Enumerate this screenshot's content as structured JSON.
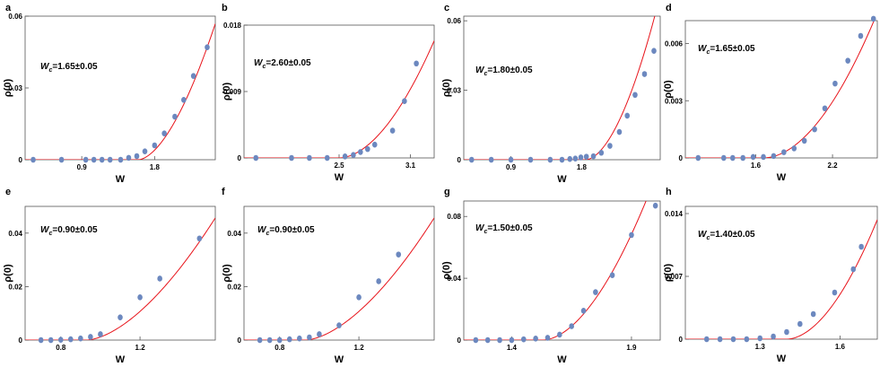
{
  "colors": {
    "points": "#6c88bf",
    "fit": "#e8141b",
    "frame": "#555555"
  },
  "chart_data": [
    {
      "type": "scatter",
      "panel": "a",
      "xlabel": "W",
      "ylabel": "ρ(0)",
      "annotation": "W_c=1.65±0.05",
      "ann_main": "W",
      "ann_sub": "c",
      "ann_rest": "=1.65±0.05",
      "xlim": [
        0.2,
        2.55
      ],
      "ylim": [
        0,
        0.06
      ],
      "xticks": [
        "0.9",
        "1.8"
      ],
      "yticks": [
        "0",
        "0.03",
        "0.06"
      ],
      "points": [
        [
          0.3,
          0
        ],
        [
          0.65,
          0
        ],
        [
          0.95,
          0
        ],
        [
          1.05,
          0
        ],
        [
          1.15,
          0
        ],
        [
          1.25,
          0
        ],
        [
          1.38,
          0
        ],
        [
          1.48,
          0.0008
        ],
        [
          1.58,
          0.0015
        ],
        [
          1.68,
          0.0035
        ],
        [
          1.8,
          0.006
        ],
        [
          1.92,
          0.011
        ],
        [
          2.05,
          0.018
        ],
        [
          2.16,
          0.025
        ],
        [
          2.28,
          0.035
        ],
        [
          2.45,
          0.047
        ]
      ],
      "fit": {
        "x0": 1.6,
        "a": 0.062,
        "p": 1.7
      }
    },
    {
      "type": "scatter",
      "panel": "b",
      "xlabel": "W",
      "ylabel": "ρ(0)",
      "annotation": "W_c=2.60±0.05",
      "ann_main": "W",
      "ann_sub": "c",
      "ann_rest": "=2.60±0.05",
      "xlim": [
        1.7,
        3.3
      ],
      "ylim": [
        0,
        0.018
      ],
      "xticks": [
        "2.5",
        "3.1"
      ],
      "yticks": [
        "0",
        "0.009",
        "0.018"
      ],
      "points": [
        [
          1.8,
          0
        ],
        [
          2.1,
          0
        ],
        [
          2.25,
          0
        ],
        [
          2.4,
          0
        ],
        [
          2.55,
          0.0002
        ],
        [
          2.62,
          0.0004
        ],
        [
          2.68,
          0.0008
        ],
        [
          2.74,
          0.0012
        ],
        [
          2.8,
          0.0018
        ],
        [
          2.95,
          0.0037
        ],
        [
          3.05,
          0.0077
        ],
        [
          3.15,
          0.0128
        ]
      ],
      "fit": {
        "x0": 2.5,
        "a": 0.024,
        "p": 1.85
      }
    },
    {
      "type": "scatter",
      "panel": "c",
      "xlabel": "W",
      "ylabel": "ρ(0)",
      "annotation": "W_c=1.80±0.05",
      "ann_main": "W",
      "ann_sub": "c",
      "ann_rest": "=1.80±0.05",
      "xlim": [
        0.3,
        2.8
      ],
      "ylim": [
        0,
        0.062
      ],
      "xticks": [
        "0.9",
        "1.8"
      ],
      "yticks": [
        "0",
        "0.03",
        "0.06"
      ],
      "points": [
        [
          0.4,
          0
        ],
        [
          0.65,
          0
        ],
        [
          0.9,
          0
        ],
        [
          1.15,
          0
        ],
        [
          1.4,
          0
        ],
        [
          1.55,
          0
        ],
        [
          1.65,
          0.0003
        ],
        [
          1.72,
          0.0005
        ],
        [
          1.79,
          0.001
        ],
        [
          1.86,
          0.0013
        ],
        [
          1.95,
          0.0015
        ],
        [
          2.05,
          0.003
        ],
        [
          2.16,
          0.006
        ],
        [
          2.28,
          0.012
        ],
        [
          2.38,
          0.019
        ],
        [
          2.48,
          0.028
        ],
        [
          2.6,
          0.037
        ],
        [
          2.72,
          0.047
        ]
      ],
      "fit": {
        "x0": 1.85,
        "a": 0.078,
        "p": 1.8
      }
    },
    {
      "type": "scatter",
      "panel": "d",
      "xlabel": "W",
      "ylabel": "ρ(0)",
      "annotation": "W_c=1.65±0.05",
      "ann_main": "W",
      "ann_sub": "c",
      "ann_rest": "=1.65±0.05",
      "xlim": [
        1.05,
        2.55
      ],
      "ylim": [
        0,
        0.0072
      ],
      "xticks": [
        "1.6",
        "2.2"
      ],
      "yticks": [
        "0",
        "0.003",
        "0.006"
      ],
      "points": [
        [
          1.15,
          0
        ],
        [
          1.35,
          0
        ],
        [
          1.42,
          0
        ],
        [
          1.5,
          0
        ],
        [
          1.58,
          5e-05
        ],
        [
          1.66,
          5e-05
        ],
        [
          1.74,
          0.0001
        ],
        [
          1.82,
          0.0003
        ],
        [
          1.9,
          0.0005
        ],
        [
          1.98,
          0.0009
        ],
        [
          2.06,
          0.0015
        ],
        [
          2.14,
          0.0026
        ],
        [
          2.22,
          0.0039
        ],
        [
          2.32,
          0.0051
        ],
        [
          2.42,
          0.0064
        ],
        [
          2.52,
          0.0073
        ]
      ],
      "fit": {
        "x0": 1.66,
        "a": 0.0095,
        "p": 1.9
      }
    },
    {
      "type": "scatter",
      "panel": "e",
      "xlabel": "W",
      "ylabel": "ρ(0)",
      "annotation": "W_c=0.90±0.05",
      "ann_main": "W",
      "ann_sub": "c",
      "ann_rest": "=0.90±0.05",
      "xlim": [
        0.62,
        1.58
      ],
      "ylim": [
        0,
        0.05
      ],
      "xticks": [
        "0.8",
        "1.2"
      ],
      "yticks": [
        "0",
        "0.02",
        "0.04"
      ],
      "points": [
        [
          0.7,
          0
        ],
        [
          0.75,
          0
        ],
        [
          0.8,
          0.0001
        ],
        [
          0.85,
          0.0003
        ],
        [
          0.9,
          0.0006
        ],
        [
          0.95,
          0.0012
        ],
        [
          1.0,
          0.0022
        ],
        [
          1.1,
          0.0085
        ],
        [
          1.2,
          0.016
        ],
        [
          1.3,
          0.023
        ],
        [
          1.5,
          0.038
        ]
      ],
      "fit": {
        "x0": 0.93,
        "a": 0.093,
        "p": 1.65
      }
    },
    {
      "type": "scatter",
      "panel": "f",
      "xlabel": "W",
      "ylabel": "ρ(0)",
      "annotation": "W_c=0.90±0.05",
      "ann_main": "W",
      "ann_sub": "c",
      "ann_rest": "=0.90±0.05",
      "xlim": [
        0.62,
        1.58
      ],
      "ylim": [
        0,
        0.05
      ],
      "xticks": [
        "0.8",
        "1.2"
      ],
      "yticks": [
        "0",
        "0.02",
        "0.04"
      ],
      "points": [
        [
          0.7,
          0
        ],
        [
          0.75,
          0
        ],
        [
          0.8,
          0
        ],
        [
          0.85,
          0.0003
        ],
        [
          0.9,
          0.0006
        ],
        [
          0.95,
          0.001
        ],
        [
          1.0,
          0.0022
        ],
        [
          1.1,
          0.0055
        ],
        [
          1.2,
          0.016
        ],
        [
          1.3,
          0.022
        ],
        [
          1.4,
          0.032
        ]
      ],
      "fit": {
        "x0": 0.93,
        "a": 0.093,
        "p": 1.65
      }
    },
    {
      "type": "scatter",
      "panel": "g",
      "xlabel": "W",
      "ylabel": "ρ(0)",
      "annotation": "W_c=1.50±0.05",
      "ann_main": "W",
      "ann_sub": "c",
      "ann_rest": "=1.50±0.05",
      "xlim": [
        1.2,
        2.02
      ],
      "ylim": [
        0,
        0.09
      ],
      "xticks": [
        "1.4",
        "1.9"
      ],
      "yticks": [
        "0",
        "0.04",
        "0.08"
      ],
      "points": [
        [
          1.25,
          0
        ],
        [
          1.3,
          0
        ],
        [
          1.35,
          0
        ],
        [
          1.4,
          0
        ],
        [
          1.45,
          0.0005
        ],
        [
          1.5,
          0.001
        ],
        [
          1.55,
          0.0015
        ],
        [
          1.6,
          0.0035
        ],
        [
          1.65,
          0.009
        ],
        [
          1.7,
          0.019
        ],
        [
          1.75,
          0.031
        ],
        [
          1.82,
          0.042
        ],
        [
          1.9,
          0.068
        ],
        [
          2.0,
          0.087
        ]
      ],
      "fit": {
        "x0": 1.53,
        "a": 0.41,
        "p": 1.8
      }
    },
    {
      "type": "scatter",
      "panel": "h",
      "xlabel": "W",
      "ylabel": "ρ(0)",
      "annotation": "W_c=1.40±0.05",
      "ann_main": "W",
      "ann_sub": "c",
      "ann_rest": "=1.40±0.05",
      "xlim": [
        1.02,
        1.74
      ],
      "ylim": [
        0,
        0.0148
      ],
      "xticks": [
        "1.3",
        "1.6"
      ],
      "yticks": [
        "0",
        "0.007",
        "0.014"
      ],
      "points": [
        [
          1.1,
          0
        ],
        [
          1.15,
          0
        ],
        [
          1.2,
          0
        ],
        [
          1.25,
          0
        ],
        [
          1.3,
          0.0001
        ],
        [
          1.35,
          0.0003
        ],
        [
          1.4,
          0.0008
        ],
        [
          1.45,
          0.0017
        ],
        [
          1.5,
          0.0028
        ],
        [
          1.58,
          0.0052
        ],
        [
          1.65,
          0.0078
        ],
        [
          1.68,
          0.0103
        ]
      ],
      "fit": {
        "x0": 1.4,
        "a": 0.098,
        "p": 1.85
      }
    }
  ]
}
